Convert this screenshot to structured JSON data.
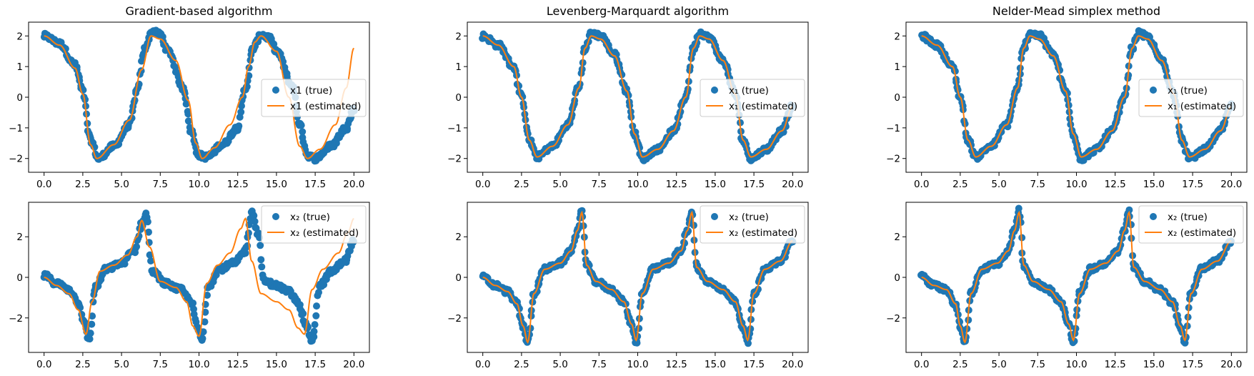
{
  "chart_data": [
    {
      "type": "scatter",
      "panel": "gradient-x1",
      "title": "Gradient-based algorithm",
      "xlim": [
        -1,
        21
      ],
      "ylim": [
        -2.45,
        2.45
      ],
      "xticks": [
        0.0,
        2.5,
        5.0,
        7.5,
        10.0,
        12.5,
        15.0,
        17.5,
        20.0
      ],
      "xtick_labels": [
        "0.0",
        "2.5",
        "5.0",
        "7.5",
        "10.0",
        "12.5",
        "15.0",
        "17.5",
        "20.0"
      ],
      "yticks": [
        2,
        1,
        0,
        -1,
        -2
      ],
      "ytick_labels": [
        "2",
        "1",
        "0",
        "−1",
        "−2"
      ],
      "legend_position": "center-right",
      "series": [
        {
          "name": "x1 (true)",
          "kind": "scatter",
          "color": "#1f77b4",
          "x": [
            0.0,
            1.0,
            2.0,
            2.5,
            3.0,
            3.5,
            4.5,
            5.5,
            6.0,
            6.5,
            7.0,
            7.5,
            8.0,
            9.0,
            9.5,
            10.0,
            10.5,
            11.5,
            12.5,
            13.0,
            13.5,
            14.0,
            14.5,
            15.0,
            16.0,
            16.5,
            17.0,
            17.5,
            18.5,
            19.5,
            20.0
          ],
          "y": [
            2.0,
            1.75,
            1.05,
            0.2,
            -1.4,
            -2.0,
            -1.6,
            -0.9,
            0.2,
            1.6,
            2.15,
            2.05,
            1.5,
            0.3,
            -1.1,
            -1.9,
            -1.95,
            -1.55,
            -1.0,
            0.3,
            1.6,
            2.05,
            1.95,
            1.5,
            0.4,
            -0.9,
            -1.9,
            -2.0,
            -1.6,
            -1.0,
            -0.4
          ]
        },
        {
          "name": "x1 (estimated)",
          "kind": "line",
          "color": "#ff7f0e",
          "x": [
            0.0,
            1.0,
            2.0,
            2.5,
            3.0,
            3.4,
            4.5,
            5.5,
            6.3,
            6.9,
            7.5,
            8.5,
            9.3,
            9.8,
            10.2,
            11.0,
            12.0,
            12.8,
            13.2,
            13.6,
            14.0,
            15.0,
            15.8,
            16.5,
            17.0,
            17.8,
            18.8,
            19.5,
            20.0
          ],
          "y": [
            2.0,
            1.7,
            0.95,
            0.1,
            -1.55,
            -2.0,
            -1.55,
            -0.75,
            0.9,
            2.0,
            1.9,
            1.2,
            -0.1,
            -1.5,
            -2.0,
            -1.65,
            -0.9,
            0.0,
            1.0,
            1.8,
            2.0,
            1.5,
            0.0,
            -1.6,
            -2.0,
            -1.7,
            -0.9,
            0.3,
            1.6
          ]
        }
      ]
    },
    {
      "type": "scatter",
      "panel": "lm-x1",
      "title": "Levenberg-Marquardt algorithm",
      "xlim": [
        -1,
        21
      ],
      "ylim": [
        -2.45,
        2.45
      ],
      "xticks": [
        0.0,
        2.5,
        5.0,
        7.5,
        10.0,
        12.5,
        15.0,
        17.5,
        20.0
      ],
      "xtick_labels": [
        "0.0",
        "2.5",
        "5.0",
        "7.5",
        "10.0",
        "12.5",
        "15.0",
        "17.5",
        "20.0"
      ],
      "yticks": [
        2,
        1,
        0,
        -1,
        -2
      ],
      "ytick_labels": [
        "2",
        "1",
        "0",
        "−1",
        "−2"
      ],
      "legend_position": "center-right",
      "series": [
        {
          "name": "x₁ (true)",
          "kind": "scatter",
          "color": "#1f77b4",
          "x": [
            0.0,
            1.0,
            2.0,
            2.5,
            3.0,
            3.5,
            4.5,
            5.5,
            6.2,
            6.6,
            7.0,
            7.6,
            8.5,
            9.3,
            9.8,
            10.3,
            11.3,
            12.3,
            13.1,
            13.6,
            14.0,
            14.6,
            15.5,
            16.3,
            16.8,
            17.3,
            18.3,
            19.3,
            20.0
          ],
          "y": [
            2.0,
            1.7,
            1.0,
            0.0,
            -1.4,
            -1.95,
            -1.6,
            -0.9,
            0.3,
            1.6,
            2.1,
            2.0,
            1.4,
            0.2,
            -1.2,
            -2.0,
            -1.7,
            -1.1,
            0.0,
            1.6,
            2.1,
            1.95,
            1.2,
            0.1,
            -1.4,
            -2.0,
            -1.7,
            -1.1,
            -0.3
          ]
        },
        {
          "name": "x₁ (estimated)",
          "kind": "line",
          "color": "#ff7f0e",
          "x": [
            0.0,
            1.0,
            2.0,
            2.5,
            3.0,
            3.5,
            4.5,
            5.5,
            6.2,
            6.6,
            7.0,
            7.6,
            8.5,
            9.3,
            9.8,
            10.3,
            11.3,
            12.3,
            13.1,
            13.6,
            14.0,
            14.6,
            15.5,
            16.3,
            16.8,
            17.3,
            18.3,
            19.3,
            20.0
          ],
          "y": [
            2.0,
            1.7,
            1.0,
            0.0,
            -1.4,
            -1.95,
            -1.6,
            -0.9,
            0.3,
            1.6,
            2.0,
            1.9,
            1.35,
            0.2,
            -1.2,
            -1.95,
            -1.7,
            -1.1,
            0.0,
            1.6,
            2.0,
            1.9,
            1.2,
            0.1,
            -1.4,
            -1.95,
            -1.7,
            -1.1,
            -0.3
          ]
        }
      ]
    },
    {
      "type": "scatter",
      "panel": "nm-x1",
      "title": "Nelder-Mead simplex method",
      "xlim": [
        -1,
        21
      ],
      "ylim": [
        -2.45,
        2.45
      ],
      "xticks": [
        0.0,
        2.5,
        5.0,
        7.5,
        10.0,
        12.5,
        15.0,
        17.5,
        20.0
      ],
      "xtick_labels": [
        "0.0",
        "2.5",
        "5.0",
        "7.5",
        "10.0",
        "12.5",
        "15.0",
        "17.5",
        "20.0"
      ],
      "yticks": [
        2,
        1,
        0,
        -1,
        -2
      ],
      "ytick_labels": [
        "2",
        "1",
        "0",
        "−1",
        "−2"
      ],
      "legend_position": "center-right",
      "series": [
        {
          "name": "x₁ (true)",
          "kind": "scatter",
          "color": "#1f77b4",
          "x": [
            0.0,
            1.0,
            2.0,
            2.5,
            3.0,
            3.5,
            4.5,
            5.5,
            6.2,
            6.6,
            7.0,
            7.6,
            8.5,
            9.3,
            9.8,
            10.3,
            11.3,
            12.3,
            13.1,
            13.6,
            14.0,
            14.6,
            15.5,
            16.3,
            16.8,
            17.3,
            18.3,
            19.3,
            20.0
          ],
          "y": [
            2.0,
            1.7,
            1.0,
            0.0,
            -1.4,
            -1.95,
            -1.6,
            -0.9,
            0.3,
            1.6,
            2.1,
            2.0,
            1.4,
            0.2,
            -1.2,
            -2.0,
            -1.7,
            -1.1,
            0.0,
            1.6,
            2.1,
            1.95,
            1.2,
            0.1,
            -1.4,
            -2.0,
            -1.7,
            -1.1,
            -0.3
          ]
        },
        {
          "name": "x₁ (estimated)",
          "kind": "line",
          "color": "#ff7f0e",
          "x": [
            0.0,
            1.0,
            2.0,
            2.5,
            3.0,
            3.5,
            4.5,
            5.5,
            6.2,
            6.6,
            7.0,
            7.6,
            8.5,
            9.3,
            9.8,
            10.3,
            11.3,
            12.3,
            13.1,
            13.6,
            14.0,
            14.6,
            15.5,
            16.3,
            16.8,
            17.3,
            18.3,
            19.3,
            20.0
          ],
          "y": [
            2.0,
            1.7,
            1.0,
            0.0,
            -1.4,
            -1.95,
            -1.6,
            -0.9,
            0.3,
            1.6,
            2.0,
            1.9,
            1.35,
            0.2,
            -1.2,
            -1.95,
            -1.7,
            -1.1,
            0.0,
            1.6,
            2.0,
            1.9,
            1.2,
            0.1,
            -1.4,
            -1.95,
            -1.7,
            -1.1,
            -0.3
          ]
        }
      ]
    },
    {
      "type": "scatter",
      "panel": "gradient-x2",
      "title": "",
      "xlim": [
        -1,
        21
      ],
      "ylim": [
        -3.7,
        3.7
      ],
      "xticks": [
        0.0,
        2.5,
        5.0,
        7.5,
        10.0,
        12.5,
        15.0,
        17.5,
        20.0
      ],
      "xtick_labels": [
        "0.0",
        "2.5",
        "5.0",
        "7.5",
        "10.0",
        "12.5",
        "15.0",
        "17.5",
        "20.0"
      ],
      "yticks": [
        2,
        0,
        -2
      ],
      "ytick_labels": [
        "2",
        "0",
        "−2"
      ],
      "legend_position": "top-right",
      "series": [
        {
          "name": "x₂ (true)",
          "kind": "scatter",
          "color": "#1f77b4",
          "x": [
            0.0,
            0.8,
            1.6,
            2.2,
            2.6,
            2.9,
            3.3,
            4.0,
            5.0,
            5.8,
            6.3,
            6.6,
            7.0,
            7.8,
            8.8,
            9.5,
            9.9,
            10.2,
            10.6,
            11.3,
            12.3,
            13.0,
            13.4,
            13.8,
            14.2,
            15.0,
            15.8,
            16.4,
            16.9,
            17.3,
            17.8,
            18.6,
            19.4,
            20.0
          ],
          "y": [
            0.1,
            -0.3,
            -0.6,
            -1.2,
            -2.3,
            -3.1,
            -0.5,
            0.4,
            0.7,
            1.3,
            2.6,
            3.1,
            0.3,
            -0.3,
            -0.6,
            -1.2,
            -2.5,
            -3.1,
            -0.4,
            0.4,
            0.7,
            1.3,
            3.3,
            2.2,
            -0.2,
            -0.4,
            -0.7,
            -1.2,
            -2.3,
            -3.2,
            -0.4,
            0.3,
            0.8,
            1.8
          ]
        },
        {
          "name": "x₂ (estimated)",
          "kind": "line",
          "color": "#ff7f0e",
          "x": [
            0.0,
            0.8,
            1.6,
            2.2,
            2.7,
            3.1,
            3.6,
            4.5,
            5.4,
            6.0,
            6.3,
            6.8,
            7.5,
            8.5,
            9.2,
            9.6,
            10.0,
            10.5,
            11.2,
            12.0,
            12.7,
            13.0,
            13.4,
            14.0,
            15.0,
            15.8,
            16.4,
            16.8,
            17.3,
            18.0,
            19.0,
            19.6,
            20.0
          ],
          "y": [
            0.0,
            -0.4,
            -0.8,
            -1.6,
            -2.8,
            -1.2,
            0.3,
            0.6,
            1.1,
            2.0,
            2.8,
            1.5,
            -0.2,
            -0.5,
            -1.2,
            -2.4,
            -2.9,
            -0.3,
            0.6,
            1.2,
            2.4,
            2.9,
            0.8,
            -0.8,
            -1.2,
            -1.6,
            -2.5,
            -2.8,
            -0.6,
            0.4,
            1.2,
            2.2,
            2.9
          ]
        }
      ]
    },
    {
      "type": "scatter",
      "panel": "lm-x2",
      "title": "",
      "xlim": [
        -1,
        21
      ],
      "ylim": [
        -3.7,
        3.7
      ],
      "xticks": [
        0.0,
        2.5,
        5.0,
        7.5,
        10.0,
        12.5,
        15.0,
        17.5,
        20.0
      ],
      "xtick_labels": [
        "0.0",
        "2.5",
        "5.0",
        "7.5",
        "10.0",
        "12.5",
        "15.0",
        "17.5",
        "20.0"
      ],
      "yticks": [
        2,
        0,
        -2
      ],
      "ytick_labels": [
        "2",
        "0",
        "−2"
      ],
      "legend_position": "top-right",
      "series": [
        {
          "name": "x₂ (true)",
          "kind": "scatter",
          "color": "#1f77b4",
          "x": [
            0.0,
            0.8,
            1.6,
            2.2,
            2.6,
            2.9,
            3.3,
            4.0,
            5.0,
            5.7,
            6.1,
            6.4,
            6.7,
            7.3,
            8.3,
            9.1,
            9.6,
            9.9,
            10.3,
            11.0,
            12.0,
            12.8,
            13.2,
            13.5,
            13.8,
            14.5,
            15.5,
            16.3,
            16.8,
            17.1,
            17.5,
            18.2,
            19.2,
            20.0
          ],
          "y": [
            0.0,
            -0.4,
            -0.7,
            -1.3,
            -2.4,
            -3.2,
            -0.8,
            0.4,
            0.7,
            1.3,
            2.3,
            3.3,
            0.6,
            -0.2,
            -0.6,
            -1.2,
            -2.3,
            -3.2,
            -0.8,
            0.4,
            0.7,
            1.3,
            2.3,
            3.3,
            0.5,
            -0.2,
            -0.6,
            -1.2,
            -2.4,
            -3.2,
            -0.8,
            0.4,
            0.8,
            1.8
          ]
        },
        {
          "name": "x₂ (estimated)",
          "kind": "line",
          "color": "#ff7f0e",
          "x": [
            0.0,
            0.8,
            1.6,
            2.2,
            2.6,
            2.9,
            3.3,
            4.0,
            5.0,
            5.7,
            6.1,
            6.4,
            6.7,
            7.3,
            8.3,
            9.1,
            9.6,
            9.9,
            10.3,
            11.0,
            12.0,
            12.8,
            13.2,
            13.5,
            13.8,
            14.5,
            15.5,
            16.3,
            16.8,
            17.1,
            17.5,
            18.2,
            19.2,
            20.0
          ],
          "y": [
            0.0,
            -0.4,
            -0.7,
            -1.3,
            -2.4,
            -3.2,
            -0.8,
            0.4,
            0.7,
            1.3,
            2.3,
            3.2,
            0.6,
            -0.2,
            -0.6,
            -1.2,
            -2.3,
            -3.1,
            -0.8,
            0.4,
            0.7,
            1.3,
            2.3,
            3.2,
            0.5,
            -0.2,
            -0.6,
            -1.2,
            -2.4,
            -3.1,
            -0.8,
            0.4,
            0.8,
            1.8
          ]
        }
      ]
    },
    {
      "type": "scatter",
      "panel": "nm-x2",
      "title": "",
      "xlim": [
        -1,
        21
      ],
      "ylim": [
        -3.7,
        3.7
      ],
      "xticks": [
        0.0,
        2.5,
        5.0,
        7.5,
        10.0,
        12.5,
        15.0,
        17.5,
        20.0
      ],
      "xtick_labels": [
        "0.0",
        "2.5",
        "5.0",
        "7.5",
        "10.0",
        "12.5",
        "15.0",
        "17.5",
        "20.0"
      ],
      "yticks": [
        2,
        0,
        -2
      ],
      "ytick_labels": [
        "2",
        "0",
        "−2"
      ],
      "legend_position": "top-right",
      "series": [
        {
          "name": "x₂ (true)",
          "kind": "scatter",
          "color": "#1f77b4",
          "x": [
            0.0,
            0.8,
            1.6,
            2.2,
            2.5,
            2.8,
            3.2,
            3.9,
            4.9,
            5.6,
            6.0,
            6.3,
            6.6,
            7.2,
            8.2,
            9.0,
            9.5,
            9.8,
            10.2,
            10.9,
            11.9,
            12.7,
            13.1,
            13.4,
            13.7,
            14.4,
            15.4,
            16.2,
            16.7,
            17.0,
            17.4,
            18.1,
            19.1,
            20.0
          ],
          "y": [
            0.1,
            -0.4,
            -0.6,
            -1.3,
            -2.4,
            -3.2,
            -0.8,
            0.4,
            0.7,
            1.3,
            2.3,
            3.3,
            0.6,
            -0.2,
            -0.6,
            -1.2,
            -2.3,
            -3.2,
            -0.8,
            0.4,
            0.7,
            1.3,
            2.3,
            3.3,
            0.5,
            -0.2,
            -0.6,
            -1.2,
            -2.4,
            -3.2,
            -0.8,
            0.4,
            0.8,
            1.8
          ]
        },
        {
          "name": "x₂ (estimated)",
          "kind": "line",
          "color": "#ff7f0e",
          "x": [
            0.0,
            0.8,
            1.6,
            2.2,
            2.5,
            2.8,
            3.2,
            3.9,
            4.9,
            5.6,
            6.0,
            6.3,
            6.6,
            7.2,
            8.2,
            9.0,
            9.5,
            9.8,
            10.2,
            10.9,
            11.9,
            12.7,
            13.1,
            13.4,
            13.7,
            14.4,
            15.4,
            16.2,
            16.7,
            17.0,
            17.4,
            18.1,
            19.1,
            20.0
          ],
          "y": [
            0.0,
            -0.4,
            -0.6,
            -1.3,
            -2.4,
            -3.2,
            -0.8,
            0.4,
            0.7,
            1.3,
            2.3,
            3.2,
            0.6,
            -0.2,
            -0.6,
            -1.2,
            -2.3,
            -3.1,
            -0.8,
            0.4,
            0.7,
            1.3,
            2.3,
            3.2,
            0.5,
            -0.2,
            -0.6,
            -1.2,
            -2.4,
            -3.1,
            -0.8,
            0.4,
            0.8,
            1.8
          ]
        }
      ]
    }
  ]
}
